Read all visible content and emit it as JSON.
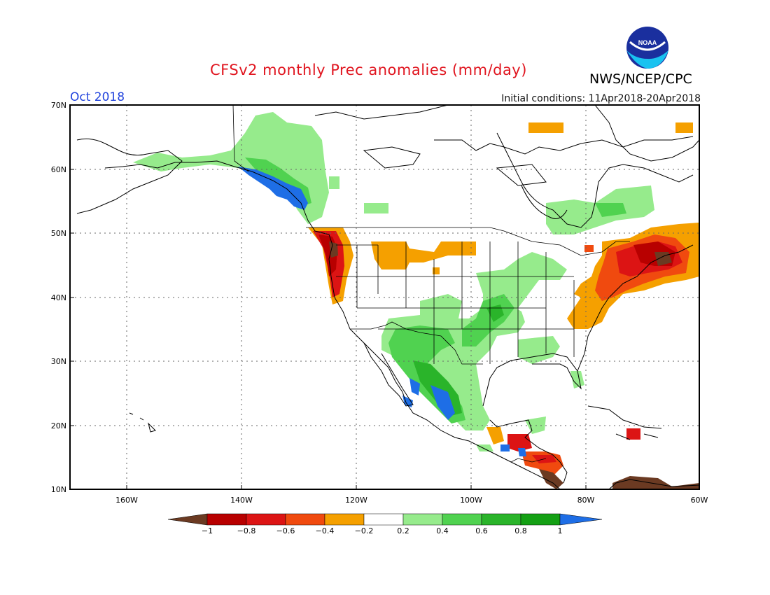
{
  "title": "CFSv2 monthly Prec anomalies (mm/day)",
  "agency": "NWS/NCEP/CPC",
  "logo_text": "NOAA",
  "month": "Oct 2018",
  "initial_conditions": "Initial conditions: 11Apr2018-20Apr2018",
  "lat_labels": [
    "70N",
    "60N",
    "50N",
    "40N",
    "30N",
    "20N",
    "10N"
  ],
  "lon_labels": [
    "160W",
    "140W",
    "120W",
    "100W",
    "80W",
    "60W"
  ],
  "colorbar": {
    "labels": [
      "−1",
      "−0.8",
      "−0.6",
      "−0.4",
      "−0.2",
      "0.2",
      "0.4",
      "0.6",
      "0.8",
      "1"
    ],
    "colors": [
      "#6b3a22",
      "#b80000",
      "#dc1414",
      "#f04a0f",
      "#f5a000",
      "#ffffff",
      "#96eb8c",
      "#50d250",
      "#2ab42a",
      "#14a014",
      "#1e6ee6"
    ]
  },
  "anomaly_regions": [
    {
      "name": "alaska-yukon",
      "color": "#96eb8c"
    },
    {
      "name": "se-alaska-coast",
      "color": "#1e6ee6"
    },
    {
      "name": "pacific-northwest",
      "color": "#dc1414"
    },
    {
      "name": "northern-plains",
      "color": "#f5a000"
    },
    {
      "name": "southwest-mexico",
      "color": "#2ab42a"
    },
    {
      "name": "central-plains",
      "color": "#50d250"
    },
    {
      "name": "northeast-us",
      "color": "#dc1414"
    },
    {
      "name": "hudson-bay",
      "color": "#96eb8c"
    },
    {
      "name": "central-america",
      "color": "#f04a0f"
    },
    {
      "name": "caribbean-south",
      "color": "#6b3a22"
    }
  ]
}
